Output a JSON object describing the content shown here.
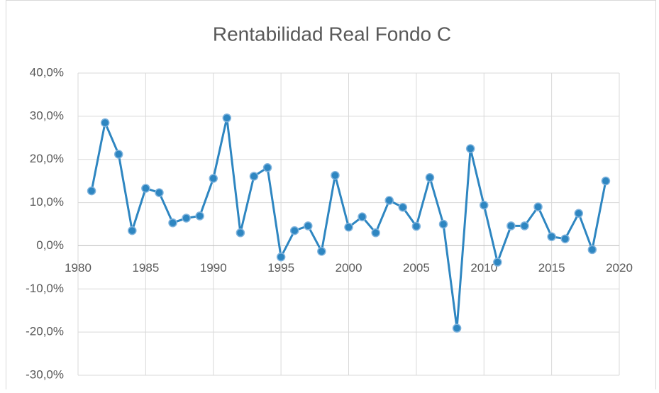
{
  "chart_data": {
    "type": "line",
    "title": "Rentabilidad Real Fondo C",
    "x": [
      1981,
      1982,
      1983,
      1984,
      1985,
      1986,
      1987,
      1988,
      1989,
      1990,
      1991,
      1992,
      1993,
      1994,
      1995,
      1996,
      1997,
      1998,
      1999,
      2000,
      2001,
      2002,
      2003,
      2004,
      2005,
      2006,
      2007,
      2008,
      2009,
      2010,
      2011,
      2012,
      2013,
      2014,
      2015,
      2016,
      2017,
      2018,
      2019
    ],
    "series": [
      {
        "name": "Rentabilidad Real Fondo C",
        "color": "#2e86c1",
        "values": [
          12.7,
          28.5,
          21.2,
          3.5,
          13.3,
          12.3,
          5.3,
          6.4,
          6.9,
          15.6,
          29.6,
          3.0,
          16.1,
          18.1,
          -2.6,
          3.5,
          4.6,
          -1.3,
          16.3,
          4.3,
          6.7,
          3.0,
          10.5,
          8.9,
          4.5,
          15.8,
          5.0,
          -19.1,
          22.5,
          9.4,
          -3.8,
          4.6,
          4.6,
          9.0,
          2.1,
          1.6,
          7.5,
          -0.9,
          15.0
        ]
      }
    ],
    "xlim": [
      1980,
      2020
    ],
    "xticks": [
      1980,
      1985,
      1990,
      1995,
      2000,
      2005,
      2010,
      2015,
      2020
    ],
    "ylim": [
      -30,
      40
    ],
    "yticks": [
      {
        "value": -30,
        "label": "-30,0%"
      },
      {
        "value": -20,
        "label": "-20,0%"
      },
      {
        "value": -10,
        "label": "-10,0%"
      },
      {
        "value": 0,
        "label": "0,0%"
      },
      {
        "value": 10,
        "label": "10,0%"
      },
      {
        "value": 20,
        "label": "20,0%"
      },
      {
        "value": 30,
        "label": "30,0%"
      },
      {
        "value": 40,
        "label": "40,0%"
      }
    ],
    "grid": true
  }
}
